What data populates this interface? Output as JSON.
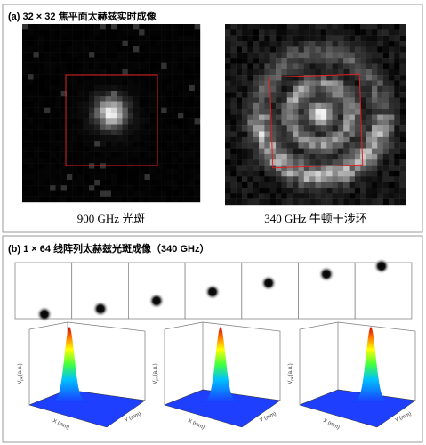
{
  "panel_a": {
    "label": "(a)",
    "title": "32 × 32 焦平面太赫兹实时成像",
    "images": [
      {
        "caption": "900 GHz 光斑"
      },
      {
        "caption": "340 GHz 牛顿干涉环"
      }
    ]
  },
  "panel_b": {
    "label": "(b)",
    "title": "1 × 64 线阵列太赫兹光斑成像（340 GHz）",
    "plot_axes": {
      "z": "V",
      "z_sub": "pk",
      "z_unit": "(a.u.)",
      "x": "X (mm)",
      "y": "Y (mm)"
    }
  }
}
